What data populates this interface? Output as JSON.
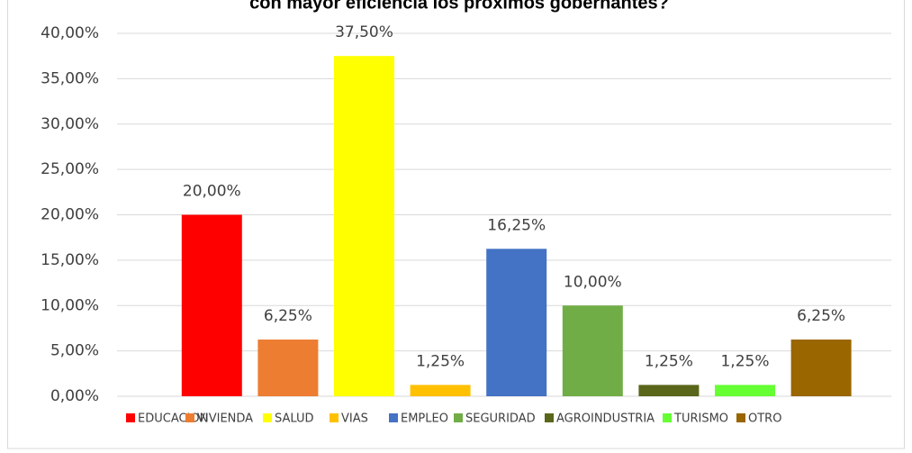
{
  "chart_data": {
    "type": "bar",
    "title": "con mayor eficiencia los próximos gobernantes?",
    "categories": [
      "EDUCACION",
      "VIVIENDA",
      "SALUD",
      "VIAS",
      "EMPLEO",
      "SEGURIDAD",
      "AGROINDUSTRIA",
      "TURISMO",
      "OTRO"
    ],
    "values": [
      20,
      6.25,
      37.5,
      1.25,
      16.25,
      10,
      1.25,
      1.25,
      6.25
    ],
    "value_labels": [
      "20,00%",
      "6,25%",
      "37,50%",
      "1,25%",
      "16,25%",
      "10,00%",
      "1,25%",
      "1,25%",
      "6,25%"
    ],
    "colors": [
      "#ff0000",
      "#ed7d31",
      "#ffff00",
      "#ffc000",
      "#4472c4",
      "#70ad47",
      "#5a661a",
      "#66ff33",
      "#996600"
    ],
    "ylim": [
      0,
      40
    ],
    "yticks": [
      {
        "value": 0,
        "label": "0,00%"
      },
      {
        "value": 5,
        "label": "5,00%"
      },
      {
        "value": 10,
        "label": "10,00%"
      },
      {
        "value": 15,
        "label": "15,00%"
      },
      {
        "value": 20,
        "label": "20,00%"
      },
      {
        "value": 25,
        "label": "25,00%"
      },
      {
        "value": 30,
        "label": "30,00%"
      },
      {
        "value": 35,
        "label": "35,00%"
      },
      {
        "value": 40,
        "label": "40,00%"
      }
    ],
    "grid": true,
    "legend": "bottom"
  }
}
